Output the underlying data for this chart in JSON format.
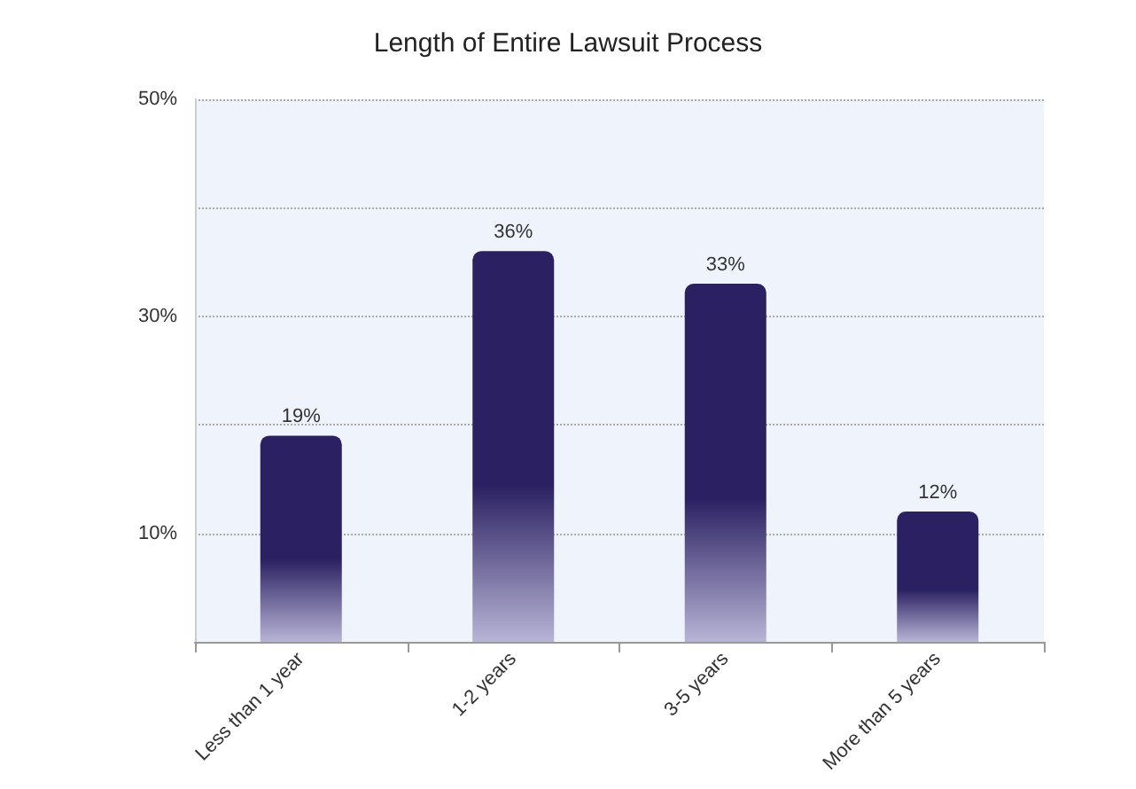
{
  "chart_data": {
    "type": "bar",
    "title": "Length of Entire Lawsuit Process",
    "categories": [
      "Less than 1 year",
      "1-2 years",
      "3-5 years",
      "More than 5 years"
    ],
    "values": [
      19,
      36,
      33,
      12
    ],
    "value_labels": [
      "19%",
      "36%",
      "33%",
      "12%"
    ],
    "color": "#2b2162",
    "ylim": [
      0,
      50
    ],
    "yticks": [
      {
        "value": 0,
        "label": null
      },
      {
        "value": 10,
        "label": "10%"
      },
      {
        "value": 20,
        "label": null
      },
      {
        "value": 30,
        "label": "30%"
      },
      {
        "value": 40,
        "label": null
      },
      {
        "value": 50,
        "label": "50%"
      }
    ],
    "grid": "y"
  }
}
